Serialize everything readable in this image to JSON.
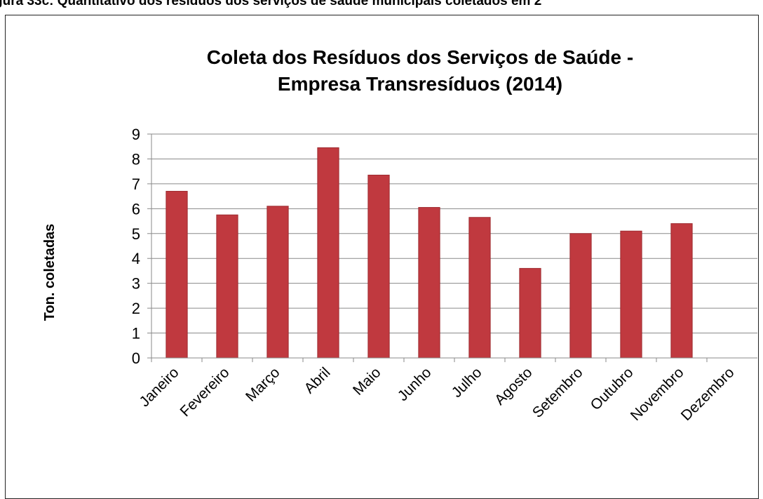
{
  "caption": "gura 33c: Quantitativo dos resíduos dos serviços de saúde municipais coletados em 2",
  "chart_data": {
    "type": "bar",
    "title": [
      "Coleta dos Resíduos dos Serviços de Saúde -",
      "Empresa Transresíduos (2014)"
    ],
    "ylabel": "Ton. coletadas",
    "xlabel": "",
    "ylim": [
      0,
      9
    ],
    "yticks": [
      0,
      1,
      2,
      3,
      4,
      5,
      6,
      7,
      8,
      9
    ],
    "grid": true,
    "categories": [
      "Janeiro",
      "Fevereiro",
      "Março",
      "Abril",
      "Maio",
      "Junho",
      "Julho",
      "Agosto",
      "Setembro",
      "Outubro",
      "Novembro",
      "Dezembro"
    ],
    "values": [
      6.7,
      5.75,
      6.1,
      8.45,
      7.35,
      6.05,
      5.65,
      3.6,
      5.0,
      5.1,
      5.4,
      0
    ],
    "bar_color": "#c0393f",
    "bar_edge_color": "#9e2b30"
  }
}
